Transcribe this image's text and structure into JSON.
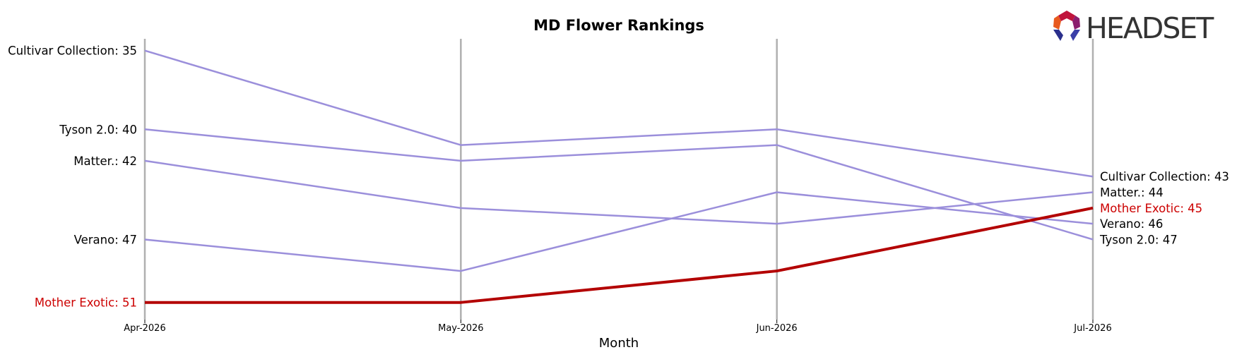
{
  "chart_data": {
    "type": "line",
    "title": "MD Flower Rankings",
    "xlabel": "Month",
    "ylabel": "",
    "categories": [
      "Apr-2026",
      "May-2026",
      "Jun-2026",
      "Jul-2026"
    ],
    "ylim": [
      34.25,
      52.0
    ],
    "y_inverted": true,
    "grid": "vertical lines at each month",
    "series": [
      {
        "name": "Cultivar Collection",
        "values": [
          35,
          41,
          40,
          43
        ],
        "highlight": false
      },
      {
        "name": "Tyson 2.0",
        "values": [
          40,
          42,
          41,
          47
        ],
        "highlight": false
      },
      {
        "name": "Matter.",
        "values": [
          42,
          45,
          46,
          44
        ],
        "highlight": false
      },
      {
        "name": "Verano",
        "values": [
          47,
          49,
          44,
          46
        ],
        "highlight": false
      },
      {
        "name": "Mother Exotic",
        "values": [
          51,
          51,
          49,
          45
        ],
        "highlight": true
      }
    ],
    "colors": {
      "default_line": "#9B8FDB",
      "highlight_line": "#B30000",
      "highlight_text": "#CC0000",
      "gridline": "#B0B0B0"
    }
  },
  "logo": {
    "text": "HEADSET"
  }
}
